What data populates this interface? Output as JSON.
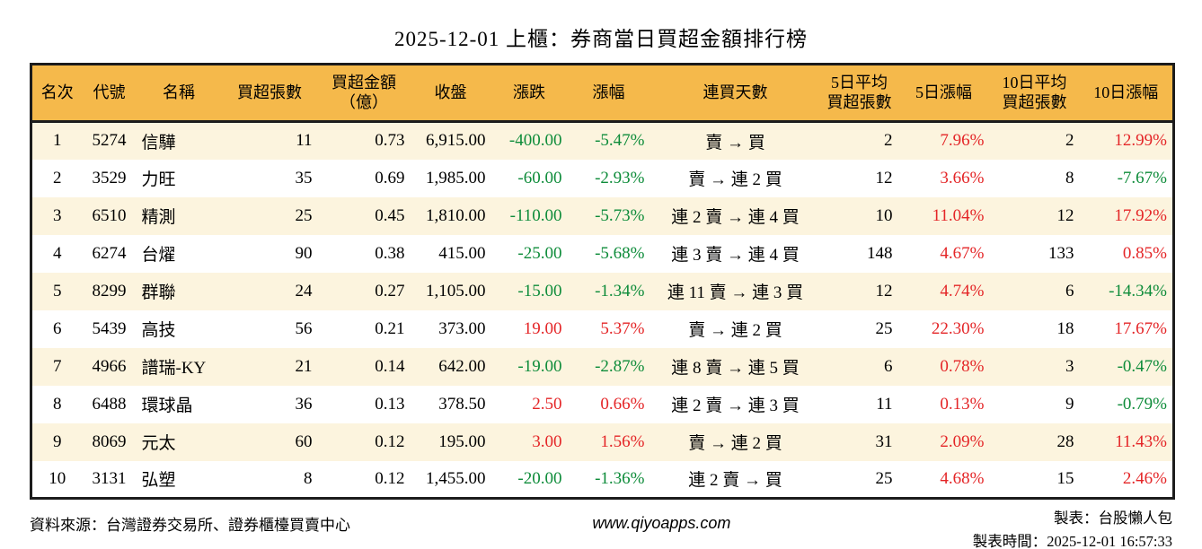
{
  "title": "2025-12-01 上櫃：券商當日買超金額排行榜",
  "colors": {
    "header_bg": "#f5b94b",
    "row_alt_bg": "#fcf4de",
    "up_red": "#e42527",
    "down_green": "#0e8c3a",
    "border": "#1c1c1c"
  },
  "table": {
    "columns": [
      {
        "key": "rank",
        "label": "名次"
      },
      {
        "key": "code",
        "label": "代號"
      },
      {
        "key": "name",
        "label": "名稱"
      },
      {
        "key": "net_buy_volume",
        "label": "買超張數"
      },
      {
        "key": "net_buy_amount",
        "label": "買超金額\n（億）"
      },
      {
        "key": "close",
        "label": "收盤"
      },
      {
        "key": "change",
        "label": "漲跌"
      },
      {
        "key": "change_pct",
        "label": "漲幅"
      },
      {
        "key": "consecutive_buy_days",
        "label": "連買天數"
      },
      {
        "key": "avg5_net_buy_volume",
        "label": "5日平均\n買超張數"
      },
      {
        "key": "chg5_pct",
        "label": "5日漲幅"
      },
      {
        "key": "avg10_net_buy_volume",
        "label": "10日平均\n買超張數"
      },
      {
        "key": "chg10_pct",
        "label": "10日漲幅"
      }
    ],
    "rows": [
      {
        "rank": "1",
        "code": "5274",
        "name": "信驊",
        "net_buy_volume": "11",
        "net_buy_amount": "0.73",
        "close": "6,915.00",
        "change": "-400.00",
        "change_pct": "-5.47%",
        "consecutive_buy_days": "賣 → 買",
        "avg5_net_buy_volume": "2",
        "chg5_pct": "7.96%",
        "avg10_net_buy_volume": "2",
        "chg10_pct": "12.99%"
      },
      {
        "rank": "2",
        "code": "3529",
        "name": "力旺",
        "net_buy_volume": "35",
        "net_buy_amount": "0.69",
        "close": "1,985.00",
        "change": "-60.00",
        "change_pct": "-2.93%",
        "consecutive_buy_days": "賣 → 連 2 買",
        "avg5_net_buy_volume": "12",
        "chg5_pct": "3.66%",
        "avg10_net_buy_volume": "8",
        "chg10_pct": "-7.67%"
      },
      {
        "rank": "3",
        "code": "6510",
        "name": "精測",
        "net_buy_volume": "25",
        "net_buy_amount": "0.45",
        "close": "1,810.00",
        "change": "-110.00",
        "change_pct": "-5.73%",
        "consecutive_buy_days": "連 2 賣 → 連 4 買",
        "avg5_net_buy_volume": "10",
        "chg5_pct": "11.04%",
        "avg10_net_buy_volume": "12",
        "chg10_pct": "17.92%"
      },
      {
        "rank": "4",
        "code": "6274",
        "name": "台燿",
        "net_buy_volume": "90",
        "net_buy_amount": "0.38",
        "close": "415.00",
        "change": "-25.00",
        "change_pct": "-5.68%",
        "consecutive_buy_days": "連 3 賣 → 連 4 買",
        "avg5_net_buy_volume": "148",
        "chg5_pct": "4.67%",
        "avg10_net_buy_volume": "133",
        "chg10_pct": "0.85%"
      },
      {
        "rank": "5",
        "code": "8299",
        "name": "群聯",
        "net_buy_volume": "24",
        "net_buy_amount": "0.27",
        "close": "1,105.00",
        "change": "-15.00",
        "change_pct": "-1.34%",
        "consecutive_buy_days": "連 11 賣 → 連 3 買",
        "avg5_net_buy_volume": "12",
        "chg5_pct": "4.74%",
        "avg10_net_buy_volume": "6",
        "chg10_pct": "-14.34%"
      },
      {
        "rank": "6",
        "code": "5439",
        "name": "高技",
        "net_buy_volume": "56",
        "net_buy_amount": "0.21",
        "close": "373.00",
        "change": "19.00",
        "change_pct": "5.37%",
        "consecutive_buy_days": "賣 → 連 2 買",
        "avg5_net_buy_volume": "25",
        "chg5_pct": "22.30%",
        "avg10_net_buy_volume": "18",
        "chg10_pct": "17.67%"
      },
      {
        "rank": "7",
        "code": "4966",
        "name": "譜瑞-KY",
        "net_buy_volume": "21",
        "net_buy_amount": "0.14",
        "close": "642.00",
        "change": "-19.00",
        "change_pct": "-2.87%",
        "consecutive_buy_days": "連 8 賣 → 連 5 買",
        "avg5_net_buy_volume": "6",
        "chg5_pct": "0.78%",
        "avg10_net_buy_volume": "3",
        "chg10_pct": "-0.47%"
      },
      {
        "rank": "8",
        "code": "6488",
        "name": "環球晶",
        "net_buy_volume": "36",
        "net_buy_amount": "0.13",
        "close": "378.50",
        "change": "2.50",
        "change_pct": "0.66%",
        "consecutive_buy_days": "連 2 賣 → 連 3 買",
        "avg5_net_buy_volume": "11",
        "chg5_pct": "0.13%",
        "avg10_net_buy_volume": "9",
        "chg10_pct": "-0.79%"
      },
      {
        "rank": "9",
        "code": "8069",
        "name": "元太",
        "net_buy_volume": "60",
        "net_buy_amount": "0.12",
        "close": "195.00",
        "change": "3.00",
        "change_pct": "1.56%",
        "consecutive_buy_days": "賣 → 連 2 買",
        "avg5_net_buy_volume": "31",
        "chg5_pct": "2.09%",
        "avg10_net_buy_volume": "28",
        "chg10_pct": "11.43%"
      },
      {
        "rank": "10",
        "code": "3131",
        "name": "弘塑",
        "net_buy_volume": "8",
        "net_buy_amount": "0.12",
        "close": "1,455.00",
        "change": "-20.00",
        "change_pct": "-1.36%",
        "consecutive_buy_days": "連 2 賣 → 買",
        "avg5_net_buy_volume": "25",
        "chg5_pct": "4.68%",
        "avg10_net_buy_volume": "15",
        "chg10_pct": "2.46%"
      }
    ]
  },
  "footer": {
    "source": "資料來源：台灣證券交易所、證券櫃檯買賣中心",
    "website": "www.qiyoapps.com",
    "maker": "製表：台股懶人包",
    "generated_at": "製表時間：2025-12-01 16:57:33"
  }
}
